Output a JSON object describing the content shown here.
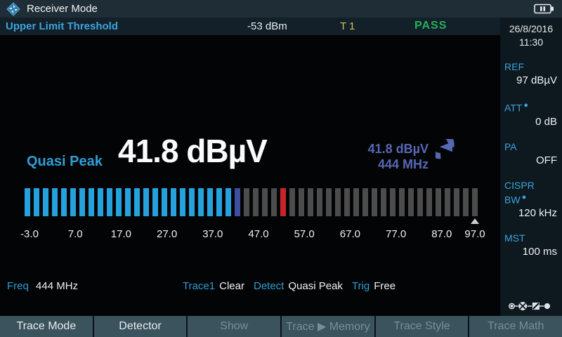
{
  "colors": {
    "accent_blue": "#2F9FD6",
    "bar_signal": "#25A2DD",
    "bar_transition": "#3F4FA0",
    "bar_off": "#4C4C4C",
    "bar_limit": "#C8232B",
    "readout_purple": "#5767B4",
    "pass_green": "#25B05C",
    "trace_yellow": "#CFC251"
  },
  "header": {
    "title": "Receiver Mode"
  },
  "limit_row": {
    "label": "Upper Limit Threshold",
    "value": "-53 dBm",
    "trace": "T 1",
    "status": "PASS"
  },
  "sidebar": {
    "date": "26/8/2016",
    "time": "11:30",
    "params": [
      {
        "key": "ref",
        "label": "REF",
        "value": "97 dBµV",
        "dot": false
      },
      {
        "key": "att",
        "label": "ATT",
        "value": "0 dB",
        "dot": true
      },
      {
        "key": "pa",
        "label": "PA",
        "value": "OFF",
        "dot": false
      },
      {
        "key": "cispr-bw",
        "label": "CISPR BW",
        "value": "120 kHz",
        "dot": true
      },
      {
        "key": "mst",
        "label": "MST",
        "value": "100 ms",
        "dot": false
      }
    ]
  },
  "main": {
    "detector_label": "Quasi Peak",
    "reading": "41.8 dBµV",
    "recall_level": "41.8 dBµV",
    "recall_freq": "444 MHz"
  },
  "meter": {
    "unit": "dBµV",
    "min": -3.0,
    "max": 97.0,
    "limit_value": 54.0,
    "scale": [
      "-3.0",
      "7.0",
      "17.0",
      "27.0",
      "37.0",
      "47.0",
      "57.0",
      "67.0",
      "77.0",
      "87.0",
      "97.0"
    ],
    "bar_states": [
      "signal",
      "signal",
      "signal",
      "signal",
      "signal",
      "signal",
      "signal",
      "signal",
      "signal",
      "signal",
      "signal",
      "signal",
      "signal",
      "signal",
      "signal",
      "signal",
      "signal",
      "signal",
      "signal",
      "signal",
      "signal",
      "signal",
      "signal",
      "transition",
      "off",
      "off",
      "off",
      "off",
      "limit",
      "off",
      "off",
      "off",
      "off",
      "off",
      "off",
      "off",
      "off",
      "off",
      "off",
      "off",
      "off",
      "off",
      "off",
      "off",
      "off",
      "off",
      "off",
      "off",
      "off",
      "off"
    ]
  },
  "status_row": {
    "freq_label": "Freq",
    "freq_value": "444 MHz",
    "fields": [
      {
        "key": "trace1",
        "label": "Trace1",
        "value": "Clear"
      },
      {
        "key": "detect",
        "label": "Detect",
        "value": "Quasi Peak"
      },
      {
        "key": "trig",
        "label": "Trig",
        "value": "Free"
      }
    ]
  },
  "softkeys": [
    {
      "key": "trace-mode",
      "label": "Trace Mode",
      "enabled": true
    },
    {
      "key": "detector",
      "label": "Detector",
      "enabled": true
    },
    {
      "key": "show",
      "label": "Show",
      "enabled": false
    },
    {
      "key": "trace-memory",
      "label": "Trace ▶ Memory",
      "enabled": false
    },
    {
      "key": "trace-style",
      "label": "Trace Style",
      "enabled": false
    },
    {
      "key": "trace-math",
      "label": "Trace Math",
      "enabled": false
    }
  ]
}
